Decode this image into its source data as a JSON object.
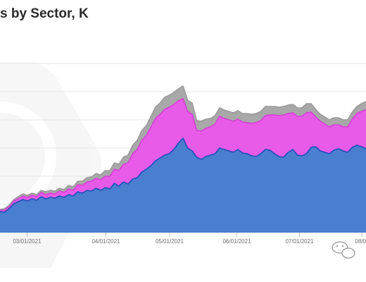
{
  "chart_data": {
    "type": "area",
    "title": "s by Sector, K",
    "x_tick_labels": [
      "03/01/2021",
      "04/01/2021",
      "05/01/2021",
      "06/01/2021",
      "07/01/2021",
      "08/0"
    ],
    "x_tick_positions": [
      38.5,
      150.5,
      241,
      336.5,
      425.5,
      514
    ],
    "stacked": true,
    "grid": "horizontal",
    "series": [
      {
        "name": "",
        "color": "#4a7ed0",
        "values": [
          30,
          29,
          34,
          41,
          44,
          47,
          45,
          48,
          46,
          51,
          48,
          50,
          49,
          52,
          50,
          54,
          52,
          58,
          56,
          60,
          59,
          63,
          60,
          64,
          62,
          70,
          66,
          72,
          69,
          76,
          78,
          86,
          90,
          95,
          102,
          106,
          110,
          112,
          118,
          127,
          134,
          120,
          116,
          107,
          104,
          108,
          110,
          112,
          120,
          118,
          116,
          114,
          118,
          113,
          112,
          109,
          108,
          112,
          118,
          117,
          112,
          108,
          107,
          114,
          118,
          110,
          109,
          112,
          121,
          122,
          116,
          114,
          112,
          117,
          119,
          116,
          114,
          121,
          124,
          122,
          119
        ]
      },
      {
        "name": "",
        "color": "#e85be8",
        "values": [
          2,
          3,
          3,
          4,
          4,
          5,
          5,
          5,
          5,
          6,
          6,
          6,
          6,
          7,
          7,
          8,
          8,
          10,
          11,
          12,
          14,
          14,
          15,
          16,
          18,
          20,
          22,
          25,
          30,
          36,
          40,
          45,
          48,
          55,
          60,
          62,
          65,
          66,
          64,
          60,
          56,
          52,
          52,
          38,
          40,
          40,
          40,
          42,
          45,
          44,
          44,
          44,
          43,
          44,
          44,
          46,
          48,
          47,
          48,
          50,
          55,
          58,
          60,
          55,
          52,
          55,
          56,
          58,
          50,
          42,
          42,
          40,
          38,
          36,
          34,
          34,
          36,
          40,
          45,
          50,
          55
        ]
      },
      {
        "name": "",
        "color": "#a8a8a8",
        "values": [
          1,
          2,
          2,
          2,
          3,
          3,
          3,
          3,
          3,
          3,
          4,
          4,
          4,
          4,
          4,
          5,
          5,
          5,
          6,
          6,
          6,
          7,
          7,
          8,
          8,
          9,
          9,
          10,
          11,
          12,
          13,
          14,
          14,
          15,
          16,
          16,
          17,
          17,
          17,
          17,
          18,
          16,
          16,
          14,
          14,
          13,
          12,
          12,
          12,
          12,
          12,
          12,
          12,
          12,
          13,
          13,
          13,
          13,
          13,
          12,
          12,
          12,
          12,
          12,
          12,
          12,
          12,
          13,
          12,
          11,
          10,
          10,
          10,
          10,
          10,
          10,
          10,
          10,
          10,
          11,
          12
        ]
      }
    ]
  }
}
